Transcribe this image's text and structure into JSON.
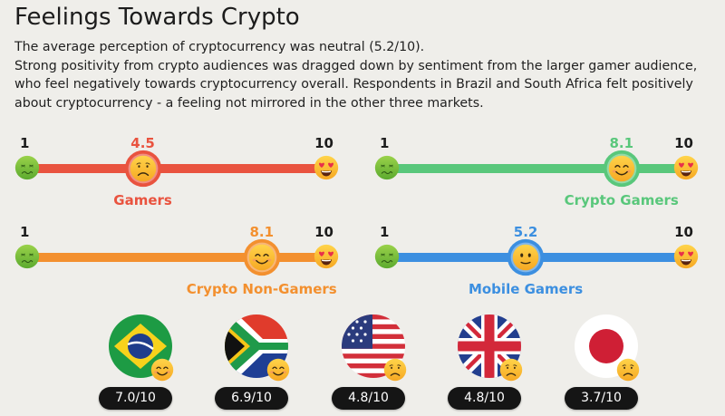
{
  "header": {
    "title": "Feelings Towards Crypto",
    "paragraph_1": "The average perception of cryptocurrency was neutral (5.2/10).",
    "paragraph_2": "Strong positivity from crypto audiences was dragged down by sentiment from the larger gamer audience, who feel negatively towards cryptocurrency overall. Respondents in Brazil and South Africa felt positively about cryptocurrency - a feeling not mirrored in the other three markets."
  },
  "scale": {
    "min": "1",
    "max": "10"
  },
  "segments": [
    {
      "name": "Gamers",
      "value": "4.5",
      "score": 4.5,
      "color": "#e9533f",
      "mood": "sad-face-icon"
    },
    {
      "name": "Crypto Gamers",
      "value": "8.1",
      "score": 8.1,
      "color": "#59c77b",
      "mood": "smiling-face-icon"
    },
    {
      "name": "Crypto Non-Gamers",
      "value": "8.1",
      "score": 8.1,
      "color": "#f3902f",
      "mood": "smiling-face-icon"
    },
    {
      "name": "Mobile Gamers",
      "value": "5.2",
      "score": 5.2,
      "color": "#3c8fe0",
      "mood": "neutral-face-icon"
    }
  ],
  "countries": [
    {
      "flag": "brazil-flag-icon",
      "score": "7.0/10",
      "mood": "smiling-face-icon"
    },
    {
      "flag": "south-africa-flag-icon",
      "score": "6.9/10",
      "mood": "smiling-face-icon"
    },
    {
      "flag": "usa-flag-icon",
      "score": "4.8/10",
      "mood": "sad-face-icon"
    },
    {
      "flag": "uk-flag-icon",
      "score": "4.8/10",
      "mood": "sad-face-icon"
    },
    {
      "flag": "japan-flag-icon",
      "score": "3.7/10",
      "mood": "sad-face-icon"
    }
  ]
}
